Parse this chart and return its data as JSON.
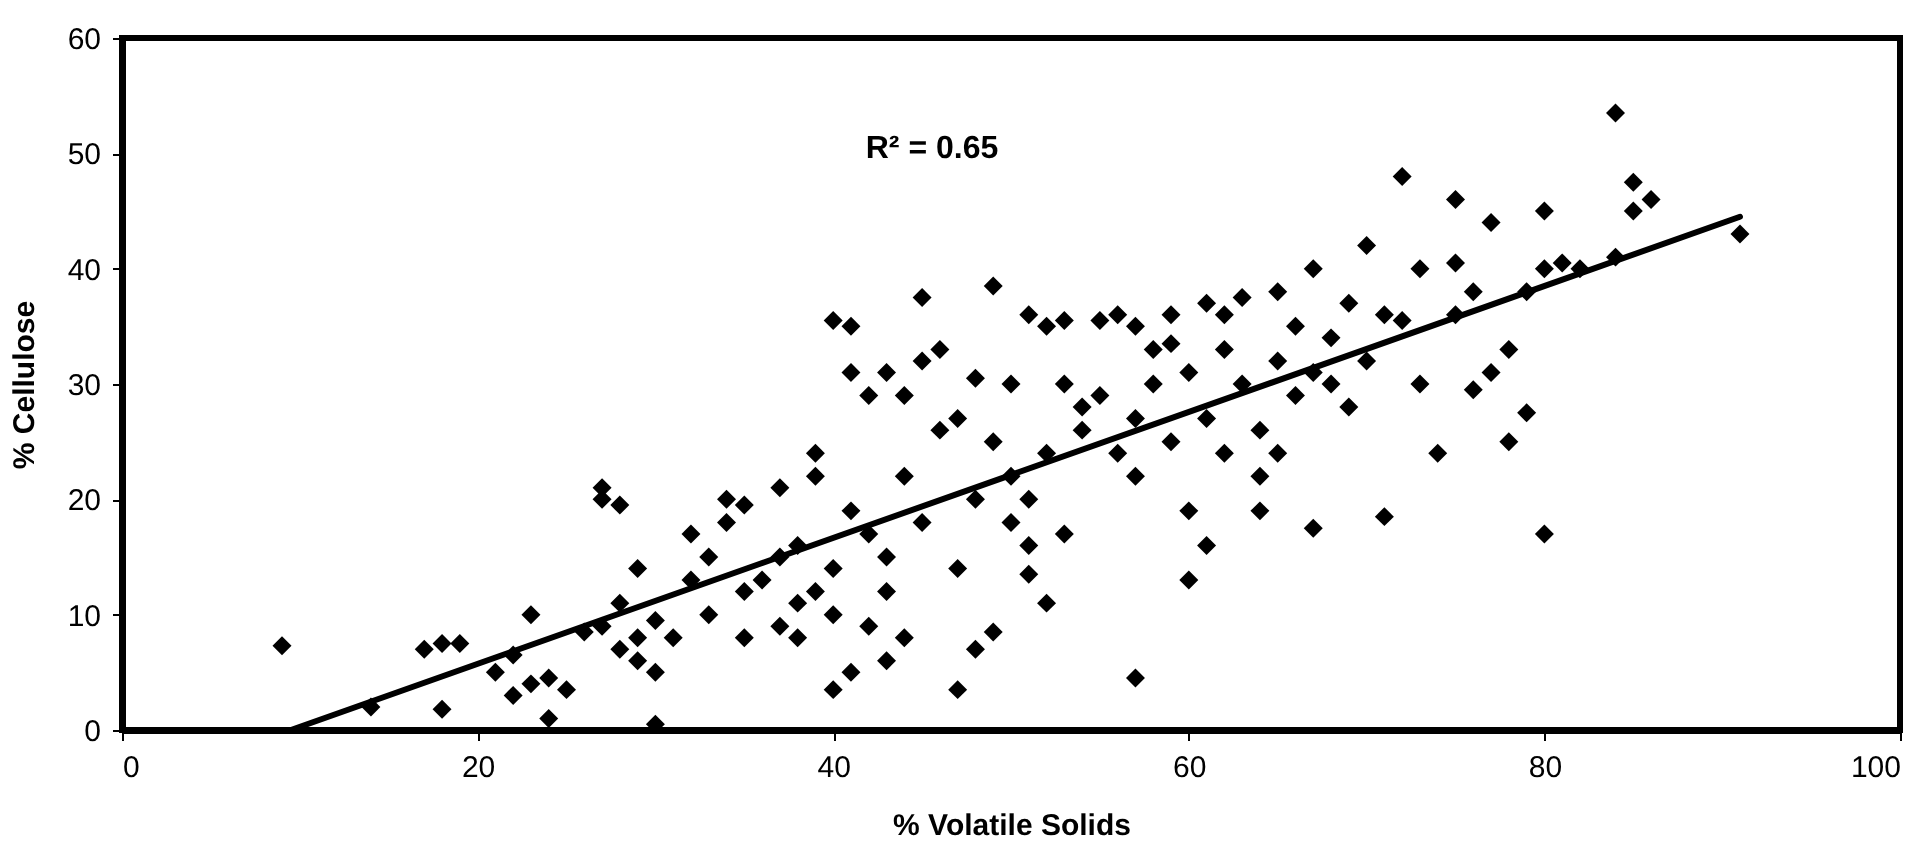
{
  "chart_data": {
    "type": "scatter",
    "xlabel": "% Volatile Solids",
    "ylabel": "% Cellulose",
    "annotations": [
      "R² = 0.65"
    ],
    "xlim": [
      0,
      100
    ],
    "xticks": [
      0,
      20,
      40,
      60,
      80,
      100
    ],
    "ylim": [
      0,
      60
    ],
    "yticks": [
      0,
      10,
      20,
      30,
      40,
      50,
      60
    ],
    "grid": false,
    "series": [
      {
        "color": "#000000",
        "marker": "diamond",
        "x": [
          9,
          14,
          17,
          18,
          18,
          19,
          21,
          22,
          22,
          23,
          23,
          24,
          24,
          25,
          26,
          27,
          27,
          28,
          27,
          28,
          28,
          29,
          29,
          29,
          30,
          30,
          30,
          31,
          32,
          32,
          33,
          33,
          34,
          34,
          35,
          35,
          35,
          36,
          37,
          37,
          37,
          38,
          38,
          38,
          39,
          39,
          39,
          40,
          40,
          40,
          40,
          41,
          41,
          41,
          41,
          42,
          42,
          42,
          43,
          43,
          43,
          43,
          44,
          44,
          44,
          45,
          45,
          45,
          46,
          46,
          47,
          47,
          47,
          48,
          48,
          48,
          49,
          49,
          49,
          50,
          50,
          50,
          51,
          51,
          51,
          51,
          52,
          52,
          52,
          53,
          53,
          53,
          54,
          54,
          55,
          55,
          56,
          56,
          57,
          57,
          57,
          57,
          58,
          58,
          59,
          59,
          59,
          60,
          60,
          60,
          61,
          61,
          61,
          62,
          62,
          62,
          63,
          63,
          64,
          64,
          64,
          65,
          65,
          65,
          66,
          66,
          67,
          67,
          67,
          68,
          68,
          69,
          69,
          70,
          70,
          71,
          71,
          72,
          72,
          73,
          73,
          74,
          75,
          75,
          75,
          76,
          76,
          77,
          77,
          78,
          78,
          79,
          79,
          80,
          80,
          80,
          81,
          82,
          84,
          84,
          85,
          85,
          86,
          91
        ],
        "values": [
          7.3,
          2,
          7,
          1.8,
          7.5,
          7.5,
          5,
          6.5,
          3,
          10,
          4,
          1,
          4.5,
          3.5,
          8.5,
          21,
          20,
          19.5,
          9,
          11,
          7,
          6,
          8,
          14,
          9.5,
          0.5,
          5,
          8,
          13,
          17,
          10,
          15,
          20,
          18,
          19.5,
          8,
          12,
          13,
          15,
          21,
          9,
          11,
          16,
          8,
          24,
          22,
          12,
          35.5,
          3.5,
          10,
          14,
          35,
          31,
          19,
          5,
          29,
          17,
          9,
          31,
          15,
          12,
          6,
          22,
          29,
          8,
          37.5,
          32,
          18,
          33,
          26,
          27,
          3.5,
          14,
          30.5,
          20,
          7,
          38.5,
          25,
          8.5,
          22,
          18,
          30,
          36,
          16,
          13.5,
          20,
          35,
          24,
          11,
          30,
          17,
          35.5,
          26,
          28,
          29,
          35.5,
          36,
          24,
          35,
          27,
          4.5,
          22,
          33,
          30,
          36,
          33.5,
          25,
          13,
          19,
          31,
          37,
          27,
          16,
          33,
          24,
          36,
          37.5,
          30,
          26,
          19,
          22,
          32,
          38,
          24,
          35,
          29,
          40,
          31,
          17.5,
          34,
          30,
          37,
          28,
          32,
          42,
          18.5,
          36,
          48,
          35.5,
          30,
          40,
          24,
          46,
          40.5,
          36,
          38,
          29.5,
          31,
          44,
          25,
          33,
          27.5,
          38,
          17,
          45,
          40,
          40.5,
          40,
          53.5,
          41,
          45,
          47.5,
          46,
          43
        ]
      },
      {
        "type": "line",
        "color": "#000000",
        "marker": "none",
        "line_style": "solid",
        "x": [
          9.5,
          91
        ],
        "values": [
          0,
          44.5
        ]
      }
    ]
  }
}
